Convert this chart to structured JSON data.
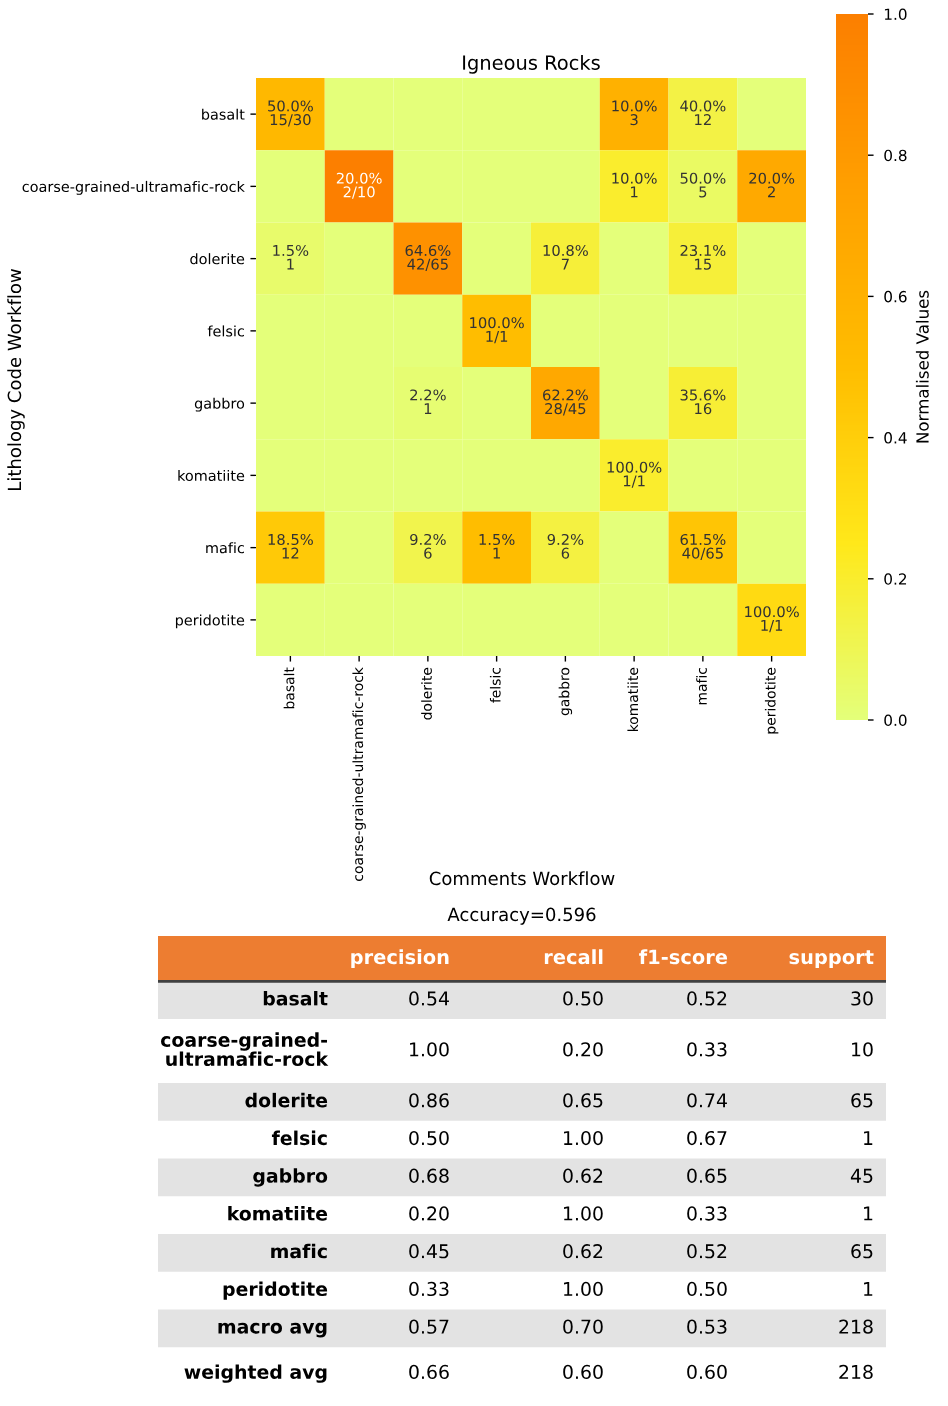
{
  "chart_data": [
    {
      "type": "heatmap",
      "title": "Igneous Rocks",
      "ylabel": "Lithology Code Workflow",
      "clabel": "Normalised Values",
      "categories": [
        "basalt",
        "coarse-grained-ultramafic-rock",
        "dolerite",
        "felsic",
        "gabbro",
        "komatiite",
        "mafic",
        "peridotite"
      ],
      "y_categories": [
        "basalt",
        "coarse-grained-ultramafic-rock",
        "dolerite",
        "felsic",
        "gabbro",
        "komatiite",
        "mafic",
        "peridotite"
      ],
      "cells": [
        [
          0.54,
          0,
          0,
          0,
          0,
          0.6,
          0.14,
          0
        ],
        [
          0,
          1.0,
          0,
          0,
          0,
          0.2,
          0.06,
          0.67
        ],
        [
          0.04,
          0,
          0.86,
          0,
          0.17,
          0,
          0.17,
          0
        ],
        [
          0,
          0,
          0,
          0.5,
          0,
          0,
          0,
          0
        ],
        [
          0,
          0,
          0.02,
          0,
          0.68,
          0,
          0.18,
          0
        ],
        [
          0,
          0,
          0,
          0,
          0,
          0.2,
          0,
          0
        ],
        [
          0.43,
          0,
          0.12,
          0.5,
          0.15,
          0,
          0.45,
          0
        ],
        [
          0,
          0,
          0,
          0,
          0,
          0,
          0,
          0.33
        ]
      ],
      "cell_labels": [
        [
          "50.0%\n15/30",
          null,
          null,
          null,
          null,
          "10.0%\n3",
          "40.0%\n12",
          null
        ],
        [
          null,
          "20.0%\n2/10",
          null,
          null,
          null,
          "10.0%\n1",
          "50.0%\n5",
          "20.0%\n2"
        ],
        [
          "1.5%\n1",
          null,
          "64.6%\n42/65",
          null,
          "10.8%\n7",
          null,
          "23.1%\n15",
          null
        ],
        [
          null,
          null,
          null,
          "100.0%\n1/1",
          null,
          null,
          null,
          null
        ],
        [
          null,
          null,
          "2.2%\n1",
          null,
          "62.2%\n28/45",
          null,
          "35.6%\n16",
          null
        ],
        [
          null,
          null,
          null,
          null,
          null,
          "100.0%\n1/1",
          null,
          null
        ],
        [
          "18.5%\n12",
          null,
          "9.2%\n6",
          "1.5%\n1",
          "9.2%\n6",
          null,
          "61.5%\n40/65",
          null
        ],
        [
          null,
          null,
          null,
          null,
          null,
          null,
          null,
          "100.0%\n1/1"
        ]
      ],
      "clim": [
        0,
        1
      ],
      "cticks": [
        {
          "value": 0,
          "label": "0.0"
        },
        {
          "value": 0.2,
          "label": "0.2"
        },
        {
          "value": 0.4,
          "label": "0.4"
        },
        {
          "value": 0.6,
          "label": "0.6"
        },
        {
          "value": 0.8,
          "label": "0.8"
        },
        {
          "value": 1,
          "label": "1.0"
        }
      ]
    },
    {
      "type": "other",
      "title": "Comments Workflow",
      "subtitle": "Accuracy=0.596",
      "categories": [
        "precision",
        "recall",
        "f1-score",
        "support"
      ],
      "y_categories": [
        "basalt",
        "coarse-grained-\nultramafic-rock",
        "dolerite",
        "felsic",
        "gabbro",
        "komatiite",
        "mafic",
        "peridotite",
        "macro avg",
        "weighted avg"
      ],
      "cell_labels": [
        [
          "0.54",
          "0.50",
          "0.52",
          "30"
        ],
        [
          "1.00",
          "0.20",
          "0.33",
          "10"
        ],
        [
          "0.86",
          "0.65",
          "0.74",
          "65"
        ],
        [
          "0.50",
          "1.00",
          "0.67",
          "1"
        ],
        [
          "0.68",
          "0.62",
          "0.65",
          "45"
        ],
        [
          "0.20",
          "1.00",
          "0.33",
          "1"
        ],
        [
          "0.45",
          "0.62",
          "0.52",
          "65"
        ],
        [
          "0.33",
          "1.00",
          "0.50",
          "1"
        ],
        [
          "0.57",
          "0.70",
          "0.53",
          "218"
        ],
        [
          "0.66",
          "0.60",
          "0.60",
          "218"
        ]
      ]
    }
  ]
}
